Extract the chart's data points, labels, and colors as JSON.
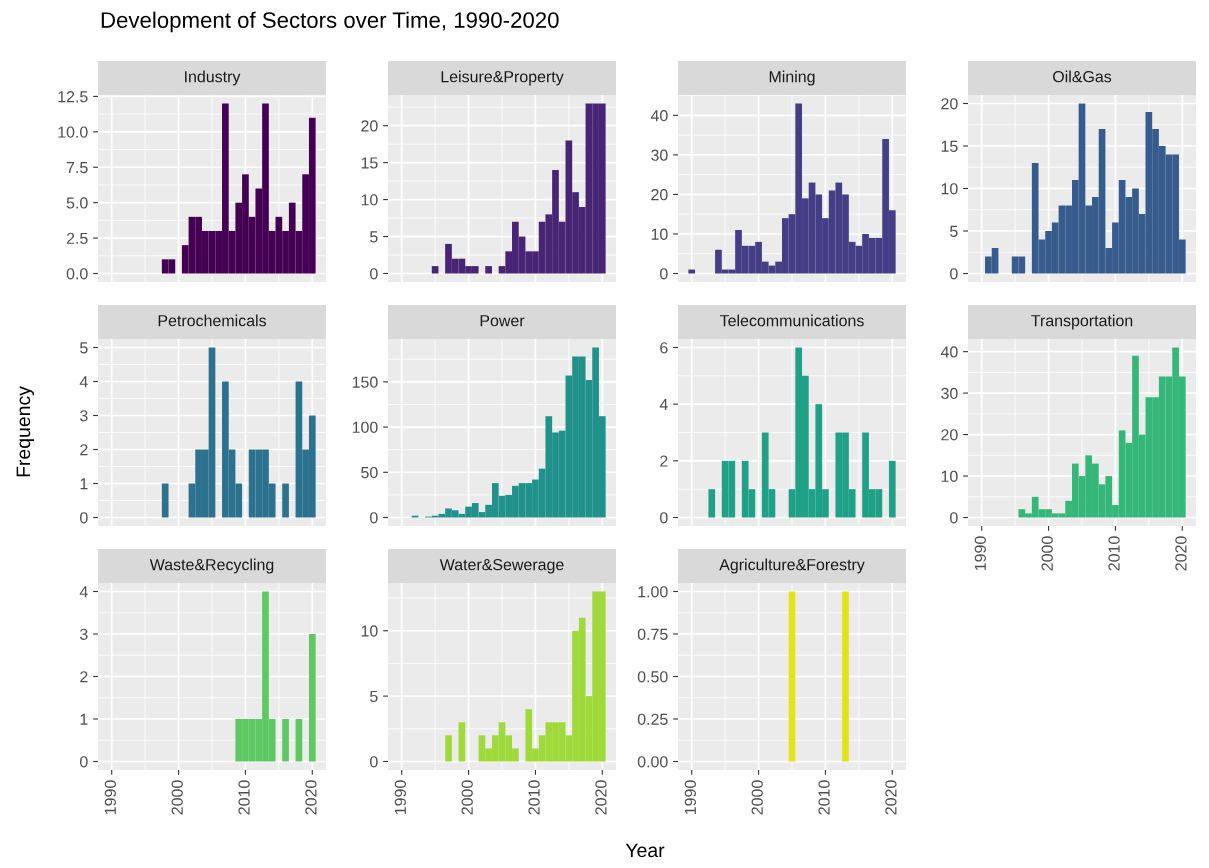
{
  "chart_data": [
    {
      "type": "other",
      "title": "Development of Sectors over Time, 1990-2020",
      "xlabel": "Year",
      "ylabel": "Frequency"
    },
    {
      "type": "histogram",
      "title": "Industry",
      "color": "#440154",
      "tick_labels": "y",
      "grid": true,
      "xlim": [
        1987.95,
        2022.05
      ],
      "xticks": [
        1990,
        2000,
        2010,
        2020
      ],
      "ylim": [
        -0.6,
        12.6
      ],
      "yticks": [
        {
          "value": 0,
          "label": "0.0"
        },
        2.5,
        {
          "value": 5,
          "label": "5.0"
        },
        7.5,
        {
          "value": 10,
          "label": "10.0"
        },
        12.5
      ],
      "bins": [
        1989.5,
        1990.5,
        1991.5,
        1992.5,
        1993.5,
        1994.5,
        1995.5,
        1996.5,
        1997.5,
        1998.5,
        1999.5,
        2000.5,
        2001.5,
        2002.5,
        2003.5,
        2004.5,
        2005.5,
        2006.5,
        2007.5,
        2008.5,
        2009.5,
        2010.5,
        2011.5,
        2012.5,
        2013.5,
        2014.5,
        2015.5,
        2016.5,
        2017.5,
        2018.5,
        2019.5,
        2020.5
      ],
      "values": [
        0,
        0,
        0,
        0,
        0,
        0,
        0,
        0,
        1,
        1,
        0,
        2,
        4,
        4,
        3,
        3,
        3,
        12,
        3,
        5,
        7,
        4,
        6,
        12,
        3,
        4,
        3,
        5,
        3,
        7,
        11
      ]
    },
    {
      "type": "histogram",
      "title": "Leisure&Property",
      "color": "#482475",
      "tick_labels": "y",
      "grid": true,
      "xlim": [
        1987.95,
        2022.05
      ],
      "xticks": [
        1990,
        2000,
        2010,
        2020
      ],
      "ylim": [
        -1.15,
        24.15
      ],
      "yticks": [
        0,
        5,
        10,
        15,
        20
      ],
      "bins": [
        1989.5,
        1990.5,
        1991.5,
        1992.5,
        1993.5,
        1994.5,
        1995.5,
        1996.5,
        1997.5,
        1998.5,
        1999.5,
        2000.5,
        2001.5,
        2002.5,
        2003.5,
        2004.5,
        2005.5,
        2006.5,
        2007.5,
        2008.5,
        2009.5,
        2010.5,
        2011.5,
        2012.5,
        2013.5,
        2014.5,
        2015.5,
        2016.5,
        2017.5,
        2018.5,
        2019.5,
        2020.5
      ],
      "values": [
        0,
        0,
        0,
        0,
        0,
        1,
        0,
        4,
        2,
        2,
        1,
        1,
        0,
        1,
        0,
        1,
        3,
        7,
        5,
        3,
        3,
        7,
        8,
        14,
        7,
        18,
        11,
        9,
        23,
        23,
        23
      ]
    },
    {
      "type": "histogram",
      "title": "Mining",
      "color": "#433e85",
      "tick_labels": "y",
      "grid": true,
      "xlim": [
        1987.95,
        2022.05
      ],
      "xticks": [
        1990,
        2000,
        2010,
        2020
      ],
      "ylim": [
        -2.15,
        45.15
      ],
      "yticks": [
        0,
        10,
        20,
        30,
        40
      ],
      "bins": [
        1989.5,
        1990.5,
        1991.5,
        1992.5,
        1993.5,
        1994.5,
        1995.5,
        1996.5,
        1997.5,
        1998.5,
        1999.5,
        2000.5,
        2001.5,
        2002.5,
        2003.5,
        2004.5,
        2005.5,
        2006.5,
        2007.5,
        2008.5,
        2009.5,
        2010.5,
        2011.5,
        2012.5,
        2013.5,
        2014.5,
        2015.5,
        2016.5,
        2017.5,
        2018.5,
        2019.5,
        2020.5
      ],
      "values": [
        1,
        0,
        0,
        0,
        6,
        1,
        1,
        11,
        7,
        7,
        8,
        3,
        2,
        3,
        14,
        15,
        43,
        19,
        23,
        20,
        14,
        21,
        23,
        20,
        8,
        7,
        10,
        9,
        9,
        34,
        16
      ]
    },
    {
      "type": "histogram",
      "title": "Oil&Gas",
      "color": "#365c8d",
      "tick_labels": "y",
      "grid": true,
      "xlim": [
        1987.95,
        2022.05
      ],
      "xticks": [
        1990,
        2000,
        2010,
        2020
      ],
      "ylim": [
        -1,
        21
      ],
      "yticks": [
        0,
        5,
        10,
        15,
        20
      ],
      "bins": [
        1989.5,
        1990.5,
        1991.5,
        1992.5,
        1993.5,
        1994.5,
        1995.5,
        1996.5,
        1997.5,
        1998.5,
        1999.5,
        2000.5,
        2001.5,
        2002.5,
        2003.5,
        2004.5,
        2005.5,
        2006.5,
        2007.5,
        2008.5,
        2009.5,
        2010.5,
        2011.5,
        2012.5,
        2013.5,
        2014.5,
        2015.5,
        2016.5,
        2017.5,
        2018.5,
        2019.5,
        2020.5
      ],
      "values": [
        0,
        2,
        3,
        0,
        0,
        2,
        2,
        0,
        13,
        4,
        5,
        6,
        8,
        8,
        11,
        20,
        8,
        9,
        17,
        3,
        6,
        11,
        9,
        10,
        7,
        19,
        17,
        15,
        14,
        14,
        4
      ]
    },
    {
      "type": "histogram",
      "title": "Petrochemicals",
      "color": "#2c728e",
      "tick_labels": "y",
      "grid": true,
      "xlim": [
        1987.95,
        2022.05
      ],
      "xticks": [
        1990,
        2000,
        2010,
        2020
      ],
      "ylim": [
        -0.25,
        5.25
      ],
      "yticks": [
        0,
        1,
        2,
        3,
        4,
        5
      ],
      "bins": [
        1989.5,
        1990.5,
        1991.5,
        1992.5,
        1993.5,
        1994.5,
        1995.5,
        1996.5,
        1997.5,
        1998.5,
        1999.5,
        2000.5,
        2001.5,
        2002.5,
        2003.5,
        2004.5,
        2005.5,
        2006.5,
        2007.5,
        2008.5,
        2009.5,
        2010.5,
        2011.5,
        2012.5,
        2013.5,
        2014.5,
        2015.5,
        2016.5,
        2017.5,
        2018.5,
        2019.5,
        2020.5
      ],
      "values": [
        0,
        0,
        0,
        0,
        0,
        0,
        0,
        0,
        1,
        0,
        0,
        0,
        1,
        2,
        2,
        5,
        0,
        4,
        2,
        1,
        0,
        2,
        2,
        2,
        1,
        0,
        1,
        0,
        4,
        2,
        3
      ]
    },
    {
      "type": "histogram",
      "title": "Power",
      "color": "#21918c",
      "tick_labels": "y",
      "grid": true,
      "xlim": [
        1987.95,
        2022.05
      ],
      "xticks": [
        1990,
        2000,
        2010,
        2020
      ],
      "ylim": [
        -9.4,
        197.4
      ],
      "yticks": [
        0,
        50,
        100,
        150
      ],
      "bins": [
        1989.5,
        1990.5,
        1991.5,
        1992.5,
        1993.5,
        1994.5,
        1995.5,
        1996.5,
        1997.5,
        1998.5,
        1999.5,
        2000.5,
        2001.5,
        2002.5,
        2003.5,
        2004.5,
        2005.5,
        2006.5,
        2007.5,
        2008.5,
        2009.5,
        2010.5,
        2011.5,
        2012.5,
        2013.5,
        2014.5,
        2015.5,
        2016.5,
        2017.5,
        2018.5,
        2019.5,
        2020.5
      ],
      "values": [
        0,
        0,
        2,
        0,
        1,
        2,
        4,
        10,
        8,
        4,
        12,
        16,
        6,
        14,
        38,
        24,
        25,
        35,
        38,
        38,
        42,
        54,
        112,
        94,
        96,
        157,
        178,
        178,
        152,
        188,
        112
      ]
    },
    {
      "type": "histogram",
      "title": "Telecommunications",
      "color": "#1fa187",
      "tick_labels": "y",
      "grid": true,
      "xlim": [
        1987.95,
        2022.05
      ],
      "xticks": [
        1990,
        2000,
        2010,
        2020
      ],
      "ylim": [
        -0.3,
        6.3
      ],
      "yticks": [
        0,
        2,
        4,
        6
      ],
      "bins": [
        1989.5,
        1990.5,
        1991.5,
        1992.5,
        1993.5,
        1994.5,
        1995.5,
        1996.5,
        1997.5,
        1998.5,
        1999.5,
        2000.5,
        2001.5,
        2002.5,
        2003.5,
        2004.5,
        2005.5,
        2006.5,
        2007.5,
        2008.5,
        2009.5,
        2010.5,
        2011.5,
        2012.5,
        2013.5,
        2014.5,
        2015.5,
        2016.5,
        2017.5,
        2018.5,
        2019.5,
        2020.5
      ],
      "values": [
        0,
        0,
        0,
        1,
        0,
        2,
        2,
        0,
        2,
        1,
        0,
        3,
        1,
        0,
        0,
        1,
        6,
        5,
        1,
        4,
        1,
        0,
        3,
        3,
        1,
        0,
        3,
        1,
        1,
        0,
        2
      ]
    },
    {
      "type": "histogram",
      "title": "Transportation",
      "color": "#35b779",
      "grid": true,
      "xlim": [
        1987.95,
        2022.05
      ],
      "xticks": [
        1990,
        2000,
        2010,
        2020
      ],
      "ylim": [
        -2.05,
        43.05
      ],
      "yticks": [
        0,
        10,
        20,
        30,
        40
      ],
      "bins": [
        1989.5,
        1990.5,
        1991.5,
        1992.5,
        1993.5,
        1994.5,
        1995.5,
        1996.5,
        1997.5,
        1998.5,
        1999.5,
        2000.5,
        2001.5,
        2002.5,
        2003.5,
        2004.5,
        2005.5,
        2006.5,
        2007.5,
        2008.5,
        2009.5,
        2010.5,
        2011.5,
        2012.5,
        2013.5,
        2014.5,
        2015.5,
        2016.5,
        2017.5,
        2018.5,
        2019.5,
        2020.5
      ],
      "values": [
        0,
        0,
        0,
        0,
        0,
        0,
        2,
        1,
        5,
        2,
        2,
        1,
        1,
        4,
        13,
        10,
        15,
        13,
        8,
        10,
        3,
        21,
        18,
        39,
        20,
        29,
        29,
        34,
        34,
        41,
        34
      ]
    },
    {
      "type": "histogram",
      "title": "Waste&Recycling",
      "color": "#5ec962",
      "grid": true,
      "xlim": [
        1987.95,
        2022.05
      ],
      "xticks": [
        1990,
        2000,
        2010,
        2020
      ],
      "ylim": [
        -0.2,
        4.2
      ],
      "yticks": [
        0,
        1,
        2,
        3,
        4
      ],
      "bins": [
        1989.5,
        1990.5,
        1991.5,
        1992.5,
        1993.5,
        1994.5,
        1995.5,
        1996.5,
        1997.5,
        1998.5,
        1999.5,
        2000.5,
        2001.5,
        2002.5,
        2003.5,
        2004.5,
        2005.5,
        2006.5,
        2007.5,
        2008.5,
        2009.5,
        2010.5,
        2011.5,
        2012.5,
        2013.5,
        2014.5,
        2015.5,
        2016.5,
        2017.5,
        2018.5,
        2019.5,
        2020.5
      ],
      "values": [
        0,
        0,
        0,
        0,
        0,
        0,
        0,
        0,
        0,
        0,
        0,
        0,
        0,
        0,
        0,
        0,
        0,
        0,
        0,
        1,
        1,
        1,
        1,
        4,
        1,
        0,
        1,
        0,
        1,
        0,
        3
      ]
    },
    {
      "type": "histogram",
      "title": "Water&Sewerage",
      "color": "#9fda3a",
      "grid": true,
      "xlim": [
        1987.95,
        2022.05
      ],
      "xticks": [
        1990,
        2000,
        2010,
        2020
      ],
      "ylim": [
        -0.65,
        13.65
      ],
      "yticks": [
        0,
        5,
        10
      ],
      "bins": [
        1989.5,
        1990.5,
        1991.5,
        1992.5,
        1993.5,
        1994.5,
        1995.5,
        1996.5,
        1997.5,
        1998.5,
        1999.5,
        2000.5,
        2001.5,
        2002.5,
        2003.5,
        2004.5,
        2005.5,
        2006.5,
        2007.5,
        2008.5,
        2009.5,
        2010.5,
        2011.5,
        2012.5,
        2013.5,
        2014.5,
        2015.5,
        2016.5,
        2017.5,
        2018.5,
        2019.5,
        2020.5
      ],
      "values": [
        0,
        0,
        0,
        0,
        0,
        0,
        0,
        2,
        0,
        3,
        0,
        0,
        2,
        1,
        2,
        3,
        2,
        1,
        0,
        4,
        1,
        2,
        3,
        3,
        3,
        2,
        10,
        11,
        5,
        13,
        13
      ]
    },
    {
      "type": "histogram",
      "title": "Agriculture&Forestry",
      "color": "#e2e418",
      "grid": true,
      "xlim": [
        1987.95,
        2022.05
      ],
      "xticks": [
        1990,
        2000,
        2010,
        2020
      ],
      "ylim": [
        -0.05,
        1.05
      ],
      "yticks": [
        {
          "value": 0,
          "label": "0.00"
        },
        {
          "value": 0.25,
          "label": "0.25"
        },
        {
          "value": 0.5,
          "label": "0.50"
        },
        {
          "value": 0.75,
          "label": "0.75"
        },
        {
          "value": 1,
          "label": "1.00"
        }
      ],
      "bins": [
        1989.5,
        1990.5,
        1991.5,
        1992.5,
        1993.5,
        1994.5,
        1995.5,
        1996.5,
        1997.5,
        1998.5,
        1999.5,
        2000.5,
        2001.5,
        2002.5,
        2003.5,
        2004.5,
        2005.5,
        2006.5,
        2007.5,
        2008.5,
        2009.5,
        2010.5,
        2011.5,
        2012.5,
        2013.5,
        2014.5,
        2015.5,
        2016.5,
        2017.5,
        2018.5,
        2019.5,
        2020.5
      ],
      "values": [
        0,
        0,
        0,
        0,
        0,
        0,
        0,
        0,
        0,
        0,
        0,
        0,
        0,
        0,
        0,
        1,
        0,
        0,
        0,
        0,
        0,
        0,
        0,
        1,
        0,
        0,
        0,
        0,
        0,
        0,
        0
      ]
    }
  ]
}
